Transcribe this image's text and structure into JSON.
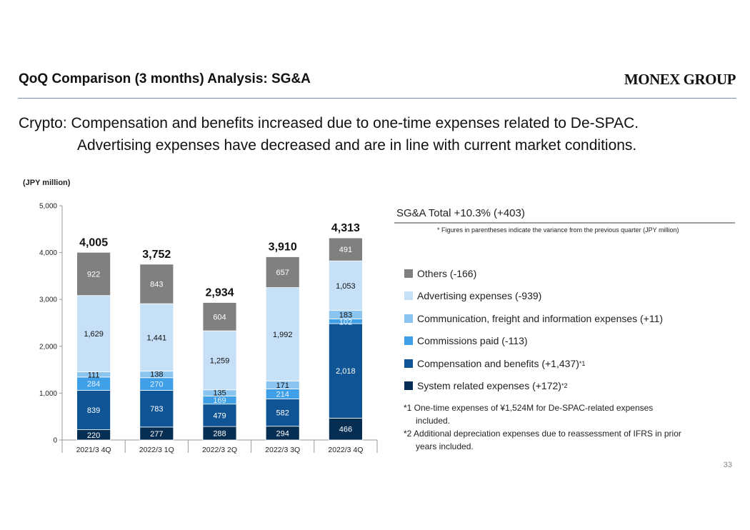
{
  "header": {
    "title": "QoQ Comparison (3 months) Analysis: SG&A",
    "logo": "MONEX GROUP"
  },
  "headline": {
    "line1": "Crypto: Compensation and benefits increased due to one-time expenses related to De-SPAC.",
    "line2": "Advertising expenses have decreased and are in line with current market conditions."
  },
  "unit_label": "(JPY million)",
  "summary": {
    "total": "SG&A Total +10.3% (+403)",
    "note": "* Figures in parentheses indicate the variance from the previous quarter (JPY million)"
  },
  "legend": [
    {
      "label": "Others (-166)",
      "sup": "",
      "color": "#808080"
    },
    {
      "label": "Advertising expenses (-939)",
      "sup": "",
      "color": "#c5e0f7"
    },
    {
      "label": "Communication, freight and information expenses (+11)",
      "sup": "",
      "color": "#8ac4ef"
    },
    {
      "label": "Commissions paid (-113)",
      "sup": "",
      "color": "#3fa0e8"
    },
    {
      "label": "Compensation and benefits (+1,437)",
      "sup": "*1",
      "color": "#0f5596"
    },
    {
      "label": "System related expenses (+172)",
      "sup": "*2",
      "color": "#062e52"
    }
  ],
  "footnotes": {
    "f1_line1": "*1 One-time expenses of ¥1,524M for De-SPAC-related expenses",
    "f1_line2": "included.",
    "f2_line1": "*2 Additional depreciation expenses due to reassessment of IFRS in prior",
    "f2_line2": "years included."
  },
  "page_number": "33",
  "chart_data": {
    "type": "bar",
    "stacked": true,
    "categories": [
      "2021/3 4Q",
      "2022/3 1Q",
      "2022/3 2Q",
      "2022/3 3Q",
      "2022/3 4Q"
    ],
    "ylim": [
      0,
      5000
    ],
    "yticks": [
      0,
      1000,
      2000,
      3000,
      4000,
      5000
    ],
    "ytick_labels": [
      "0",
      "1,000",
      "2,000",
      "3,000",
      "4,000",
      "5,000"
    ],
    "series": [
      {
        "name": "System related expenses",
        "color": "#062e52",
        "values": [
          220,
          277,
          288,
          294,
          466
        ]
      },
      {
        "name": "Compensation and benefits",
        "color": "#0f5596",
        "values": [
          839,
          783,
          479,
          582,
          2018
        ]
      },
      {
        "name": "Commissions paid",
        "color": "#3fa0e8",
        "values": [
          284,
          270,
          169,
          214,
          102
        ]
      },
      {
        "name": "Communication, freight and information expenses",
        "color": "#8ac4ef",
        "values": [
          111,
          138,
          135,
          171,
          183
        ]
      },
      {
        "name": "Advertising expenses",
        "color": "#c5e0f7",
        "values": [
          1629,
          1441,
          1259,
          1992,
          1053
        ]
      },
      {
        "name": "Others",
        "color": "#808080",
        "values": [
          922,
          843,
          604,
          657,
          491
        ]
      }
    ],
    "totals": [
      4005,
      3752,
      2934,
      3910,
      4313
    ],
    "total_labels": [
      "4,005",
      "3,752",
      "2,934",
      "3,910",
      "4,313"
    ]
  }
}
